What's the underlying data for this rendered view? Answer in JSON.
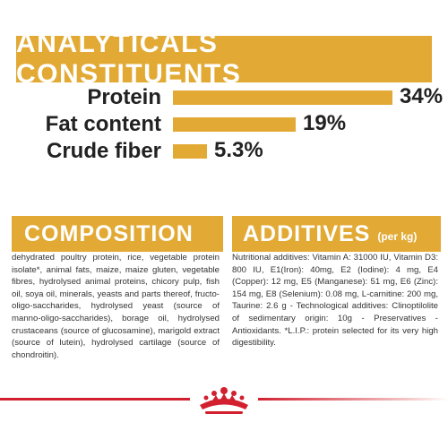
{
  "analytical": {
    "title": "ANALYTICALS CONSTITUENTS",
    "rows": [
      {
        "label": "Protein",
        "value": "34%",
        "percent": 34
      },
      {
        "label": "Fat content",
        "value": "19%",
        "percent": 19
      },
      {
        "label": "Crude fiber",
        "value": "5.3%",
        "percent": 5.3
      }
    ]
  },
  "composition": {
    "title": "COMPOSITION",
    "text": "dehydrated poultry protein, rice, vegetable protein isolate*, animal fats, maize, maize gluten, vegetable fibres, hydrolysed animal proteins, chicory pulp, fish oil, soya oil, minerals, yeasts and parts thereof, fructo-oligo-saccharides, hydrolysed yeast (source of manno-oligo-saccharides), borage oil, hydrolysed crustaceans (source of glucosamine), marigold extract (source of lutein), hydrolysed cartilage (source of chondroitin)."
  },
  "additives": {
    "title": "ADDITIVES",
    "subtitle": "(per kg)",
    "text": "Nutritional additives: Vitamin A: 31000 IU, Vitamin D3: 800 IU, E1(Iron): 40mg, E2 (Iodine): 4 mg, E4 (Copper): 12 mg, E5 (Manganese): 51 mg, E6 (Zinc): 154 mg, E8 (Selenium): 0.08 mg, L-carnitine: 200 mg, Taurine: 2.6 g - Technological additives: Clinoptilolite of sedimentary origin: 10g - Preservatives - Antioxidants. *L.I.P.: protein selected for its very high digestibility."
  },
  "colors": {
    "gold": "#e2aa35",
    "red": "#d2202f"
  },
  "brand_logo": {
    "name": "crown-logo-icon"
  }
}
